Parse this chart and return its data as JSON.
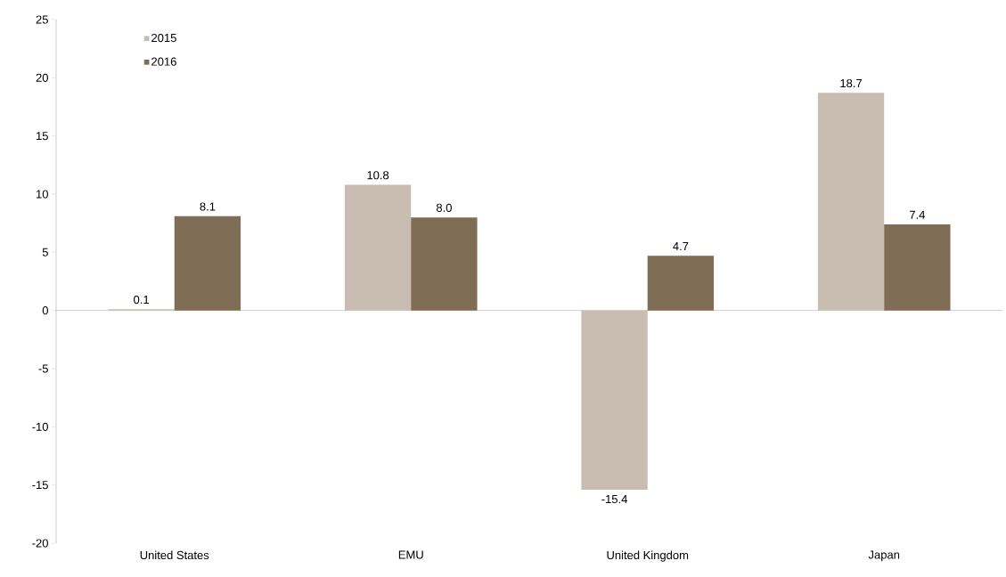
{
  "chart_data": {
    "type": "bar",
    "categories": [
      "United States",
      "EMU",
      "United Kingdom",
      "Japan"
    ],
    "series": [
      {
        "name": "2015",
        "color": "#c9bdb1",
        "values": [
          0.1,
          10.8,
          -15.4,
          18.7
        ],
        "value_labels": [
          "0.1",
          "10.8",
          "-15.4",
          "18.7"
        ]
      },
      {
        "name": "2016",
        "color": "#7f6d56",
        "values": [
          8.1,
          8.0,
          4.7,
          7.4
        ],
        "value_labels": [
          "8.1",
          "8.0",
          "4.7",
          "7.4"
        ]
      }
    ],
    "ylim": [
      -20,
      25
    ],
    "yticks": [
      -20,
      -15,
      -10,
      -5,
      0,
      5,
      10,
      15,
      20,
      25
    ],
    "legend": "top left"
  }
}
